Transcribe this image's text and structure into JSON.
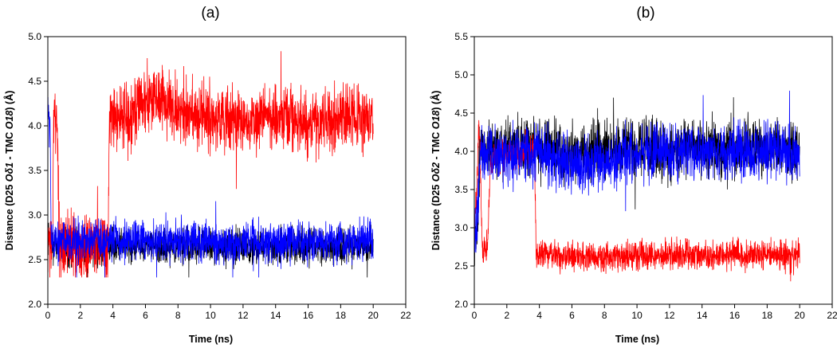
{
  "chart_data": [
    {
      "type": "line",
      "panel_label": "(a)",
      "xlabel": "Time (ns)",
      "ylabel": {
        "pre": "Distance (D25 ",
        "atom1": "Oδ1",
        "mid": " - TMC ",
        "atom2": "O18",
        "post": ") (Å)"
      },
      "xlim": [
        0,
        22
      ],
      "ylim": [
        2.0,
        5.0
      ],
      "x_ticks": [
        "0",
        "2",
        "4",
        "6",
        "8",
        "10",
        "12",
        "14",
        "16",
        "18",
        "20",
        "22"
      ],
      "y_ticks": [
        "2.0",
        "2.5",
        "3.0",
        "3.5",
        "4.0",
        "4.5",
        "5.0"
      ],
      "grid": false,
      "series": [
        {
          "color": "#000000",
          "x": [
            0,
            0.5,
            1,
            2,
            3,
            4,
            6,
            8,
            10,
            12,
            14,
            16,
            18,
            20
          ],
          "mean": [
            2.7,
            2.65,
            2.62,
            2.62,
            2.62,
            2.65,
            2.65,
            2.65,
            2.65,
            2.65,
            2.65,
            2.65,
            2.65,
            2.65
          ],
          "noise": 0.12
        },
        {
          "color": "#ff0000",
          "x": [
            0,
            0.3,
            0.35,
            0.6,
            0.7,
            1.0,
            1.2,
            2.0,
            3.0,
            3.7,
            3.8,
            5.0,
            6.0,
            7.0,
            8.0,
            10.0,
            12.0,
            14.0,
            16.0,
            18.0,
            20.0
          ],
          "mean": [
            2.7,
            2.65,
            4.0,
            4.0,
            2.7,
            2.65,
            2.65,
            2.65,
            2.65,
            2.65,
            4.1,
            4.1,
            4.3,
            4.3,
            4.15,
            4.1,
            4.05,
            4.1,
            4.05,
            4.1,
            4.1
          ],
          "noise": 0.22
        },
        {
          "color": "#0000ff",
          "x": [
            0,
            0.15,
            0.2,
            1.0,
            2.0,
            4.0,
            6.0,
            8.0,
            10.0,
            12.0,
            14.0,
            16.0,
            18.0,
            20.0
          ],
          "mean": [
            4.1,
            4.0,
            2.7,
            2.7,
            2.7,
            2.72,
            2.72,
            2.7,
            2.7,
            2.7,
            2.7,
            2.7,
            2.7,
            2.7
          ],
          "noise": 0.14
        }
      ]
    },
    {
      "type": "line",
      "panel_label": "(b)",
      "xlabel": "Time (ns)",
      "ylabel": {
        "pre": "Distance (D25 ",
        "atom1": "Oδ2",
        "mid": " - TMC ",
        "atom2": "O18",
        "post": ") (Å)"
      },
      "xlim": [
        0,
        22
      ],
      "ylim": [
        2.0,
        5.5
      ],
      "x_ticks": [
        "0",
        "2",
        "4",
        "6",
        "8",
        "10",
        "12",
        "14",
        "16",
        "18",
        "20",
        "22"
      ],
      "y_ticks": [
        "2.0",
        "2.5",
        "3.0",
        "3.5",
        "4.0",
        "4.5",
        "5.0",
        "5.5"
      ],
      "grid": false,
      "series": [
        {
          "color": "#000000",
          "x": [
            0,
            0.2,
            0.3,
            2.0,
            4.0,
            6.0,
            8.0,
            10.0,
            12.0,
            14.0,
            16.0,
            18.0,
            20.0
          ],
          "mean": [
            2.8,
            3.0,
            4.0,
            4.1,
            4.1,
            4.0,
            4.0,
            4.05,
            4.0,
            4.05,
            4.05,
            4.05,
            4.0
          ],
          "noise": 0.22
        },
        {
          "color": "#ff0000",
          "x": [
            0,
            0.3,
            0.5,
            0.8,
            1.0,
            2.0,
            3.0,
            3.7,
            3.8,
            5.0,
            8.0,
            10.0,
            12.0,
            14.0,
            16.0,
            18.0,
            20.0
          ],
          "mean": [
            2.8,
            4.4,
            2.7,
            2.75,
            3.9,
            3.95,
            4.0,
            4.0,
            2.65,
            2.65,
            2.62,
            2.65,
            2.65,
            2.62,
            2.65,
            2.65,
            2.62
          ],
          "noise": 0.12
        },
        {
          "color": "#0000ff",
          "x": [
            0,
            0.2,
            0.4,
            2.0,
            4.0,
            6.0,
            8.0,
            10.0,
            12.0,
            14.0,
            16.0,
            18.0,
            20.0
          ],
          "mean": [
            2.7,
            3.2,
            4.0,
            3.95,
            4.0,
            3.8,
            3.85,
            3.95,
            4.0,
            4.0,
            4.0,
            4.0,
            4.0
          ],
          "noise": 0.22
        }
      ]
    }
  ]
}
